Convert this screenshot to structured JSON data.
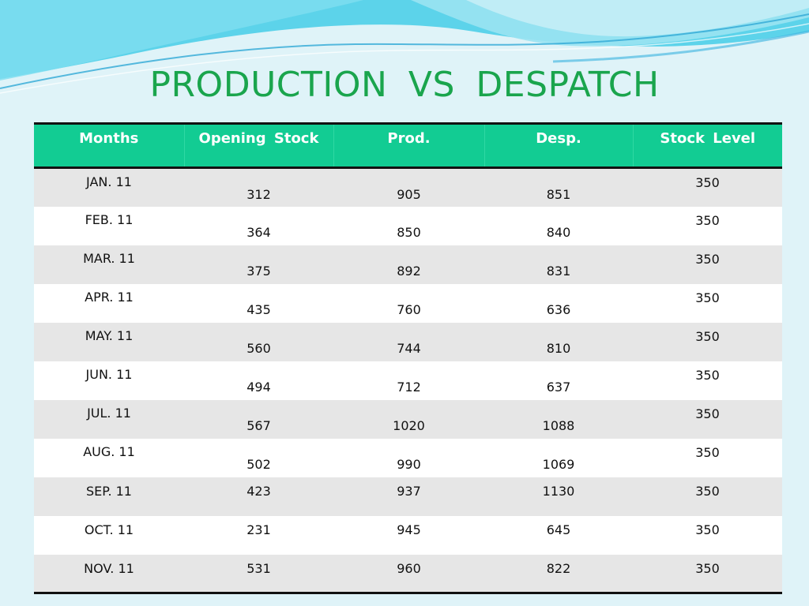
{
  "slide": {
    "title": "PRODUCTION  VS  DESPATCH"
  },
  "theme": {
    "header_bg": "#12cc93",
    "title_color": "#1aa54d",
    "row_alt_bg": "#e6e6e6"
  },
  "table": {
    "columns": [
      "Months",
      "Opening  Stock",
      "Prod.",
      "Desp.",
      "Stock Level"
    ],
    "rows": [
      {
        "month": "JAN. 11",
        "opening_stock": "312",
        "prod": "905",
        "desp": "851",
        "stock_level": "350",
        "layout": "split"
      },
      {
        "month": "FEB. 11",
        "opening_stock": "364",
        "prod": "850",
        "desp": "840",
        "stock_level": "350",
        "layout": "split"
      },
      {
        "month": "MAR. 11",
        "opening_stock": "375",
        "prod": "892",
        "desp": "831",
        "stock_level": "350",
        "layout": "split"
      },
      {
        "month": "APR. 11",
        "opening_stock": "435",
        "prod": "760",
        "desp": "636",
        "stock_level": "350",
        "layout": "split"
      },
      {
        "month": "MAY. 11",
        "opening_stock": "560",
        "prod": "744",
        "desp": "810",
        "stock_level": "350",
        "layout": "split"
      },
      {
        "month": "JUN. 11",
        "opening_stock": "494",
        "prod": "712",
        "desp": "637",
        "stock_level": "350",
        "layout": "split"
      },
      {
        "month": "JUL. 11",
        "opening_stock": "567",
        "prod": "1020",
        "desp": "1088",
        "stock_level": "350",
        "layout": "split"
      },
      {
        "month": "AUG. 11",
        "opening_stock": "502",
        "prod": "990",
        "desp": "1069",
        "stock_level": "350",
        "layout": "split"
      },
      {
        "month": "SEP. 11",
        "opening_stock": "423",
        "prod": "937",
        "desp": "1130",
        "stock_level": "350",
        "layout": "single"
      },
      {
        "month": "OCT. 11",
        "opening_stock": "231",
        "prod": "945",
        "desp": "645",
        "stock_level": "350",
        "layout": "single"
      },
      {
        "month": "NOV. 11",
        "opening_stock": "531",
        "prod": "960",
        "desp": "822",
        "stock_level": "350",
        "layout": "single"
      }
    ]
  }
}
